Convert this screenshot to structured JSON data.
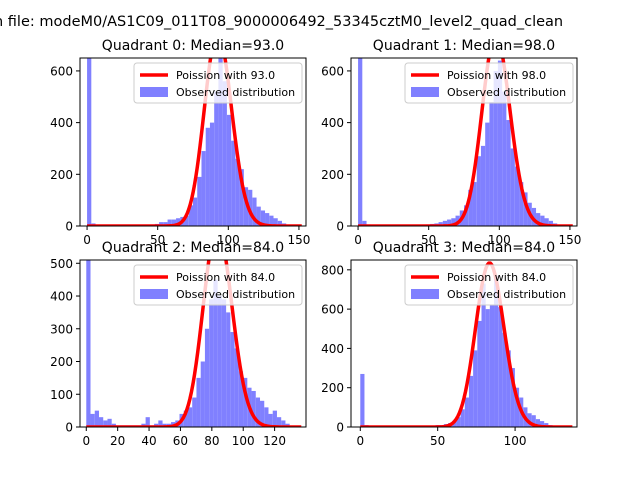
{
  "figure": {
    "suptitle": "n file: modeM0/AS1C09_011T08_9000006492_53345cztM0_level2_quad_clean",
    "colors": {
      "hist": "#8080ff",
      "fit": "#ff0000",
      "legend_border": "#cccccc"
    }
  },
  "chart_data": [
    {
      "type": "bar",
      "title": "Quadrant 0: Median=93.0",
      "legend": [
        "Poission with 93.0",
        "Observed distribution"
      ],
      "median": 93.0,
      "xlim": [
        -5,
        155
      ],
      "ylim": [
        0,
        650
      ],
      "xticks": [
        0,
        50,
        100,
        150
      ],
      "yticks": [
        0,
        200,
        400,
        600
      ],
      "bin_width": 3,
      "bins": [
        {
          "x": 0,
          "y": 650
        },
        {
          "x": 3,
          "y": 10
        },
        {
          "x": 6,
          "y": 5
        },
        {
          "x": 9,
          "y": 4
        },
        {
          "x": 12,
          "y": 3
        },
        {
          "x": 15,
          "y": 3
        },
        {
          "x": 18,
          "y": 3
        },
        {
          "x": 21,
          "y": 3
        },
        {
          "x": 24,
          "y": 4
        },
        {
          "x": 27,
          "y": 3
        },
        {
          "x": 30,
          "y": 4
        },
        {
          "x": 33,
          "y": 4
        },
        {
          "x": 36,
          "y": 5
        },
        {
          "x": 39,
          "y": 5
        },
        {
          "x": 42,
          "y": 5
        },
        {
          "x": 45,
          "y": 6
        },
        {
          "x": 48,
          "y": 8
        },
        {
          "x": 51,
          "y": 15
        },
        {
          "x": 54,
          "y": 15
        },
        {
          "x": 57,
          "y": 25
        },
        {
          "x": 60,
          "y": 25
        },
        {
          "x": 63,
          "y": 30
        },
        {
          "x": 66,
          "y": 35
        },
        {
          "x": 69,
          "y": 40
        },
        {
          "x": 72,
          "y": 80
        },
        {
          "x": 75,
          "y": 110
        },
        {
          "x": 78,
          "y": 190
        },
        {
          "x": 81,
          "y": 290
        },
        {
          "x": 84,
          "y": 380
        },
        {
          "x": 87,
          "y": 400
        },
        {
          "x": 90,
          "y": 520
        },
        {
          "x": 93,
          "y": 650
        },
        {
          "x": 96,
          "y": 560
        },
        {
          "x": 99,
          "y": 430
        },
        {
          "x": 102,
          "y": 330
        },
        {
          "x": 105,
          "y": 260
        },
        {
          "x": 108,
          "y": 220
        },
        {
          "x": 111,
          "y": 150
        },
        {
          "x": 114,
          "y": 140
        },
        {
          "x": 117,
          "y": 110
        },
        {
          "x": 120,
          "y": 75
        },
        {
          "x": 123,
          "y": 60
        },
        {
          "x": 126,
          "y": 50
        },
        {
          "x": 129,
          "y": 40
        },
        {
          "x": 132,
          "y": 30
        },
        {
          "x": 135,
          "y": 20
        },
        {
          "x": 138,
          "y": 10
        },
        {
          "x": 141,
          "y": 5
        }
      ]
    },
    {
      "type": "bar",
      "title": "Quadrant 1: Median=98.0",
      "legend": [
        "Poission with 98.0",
        "Observed distribution"
      ],
      "median": 98.0,
      "xlim": [
        -5,
        155
      ],
      "ylim": [
        0,
        650
      ],
      "xticks": [
        0,
        50,
        100,
        150
      ],
      "yticks": [
        0,
        200,
        400,
        600
      ],
      "bin_width": 3,
      "bins": [
        {
          "x": 0,
          "y": 650
        },
        {
          "x": 3,
          "y": 20
        },
        {
          "x": 6,
          "y": 6
        },
        {
          "x": 9,
          "y": 4
        },
        {
          "x": 12,
          "y": 3
        },
        {
          "x": 15,
          "y": 3
        },
        {
          "x": 18,
          "y": 3
        },
        {
          "x": 21,
          "y": 3
        },
        {
          "x": 24,
          "y": 3
        },
        {
          "x": 27,
          "y": 4
        },
        {
          "x": 30,
          "y": 4
        },
        {
          "x": 33,
          "y": 4
        },
        {
          "x": 36,
          "y": 4
        },
        {
          "x": 39,
          "y": 5
        },
        {
          "x": 42,
          "y": 5
        },
        {
          "x": 45,
          "y": 5
        },
        {
          "x": 48,
          "y": 6
        },
        {
          "x": 51,
          "y": 8
        },
        {
          "x": 54,
          "y": 10
        },
        {
          "x": 57,
          "y": 15
        },
        {
          "x": 60,
          "y": 20
        },
        {
          "x": 63,
          "y": 25
        },
        {
          "x": 66,
          "y": 30
        },
        {
          "x": 69,
          "y": 40
        },
        {
          "x": 72,
          "y": 60
        },
        {
          "x": 75,
          "y": 80
        },
        {
          "x": 78,
          "y": 140
        },
        {
          "x": 81,
          "y": 170
        },
        {
          "x": 84,
          "y": 270
        },
        {
          "x": 87,
          "y": 310
        },
        {
          "x": 90,
          "y": 400
        },
        {
          "x": 93,
          "y": 480
        },
        {
          "x": 96,
          "y": 600
        },
        {
          "x": 99,
          "y": 640
        },
        {
          "x": 102,
          "y": 520
        },
        {
          "x": 105,
          "y": 410
        },
        {
          "x": 108,
          "y": 300
        },
        {
          "x": 111,
          "y": 230
        },
        {
          "x": 114,
          "y": 170
        },
        {
          "x": 117,
          "y": 130
        },
        {
          "x": 120,
          "y": 90
        },
        {
          "x": 123,
          "y": 70
        },
        {
          "x": 126,
          "y": 50
        },
        {
          "x": 129,
          "y": 40
        },
        {
          "x": 132,
          "y": 30
        },
        {
          "x": 135,
          "y": 20
        },
        {
          "x": 138,
          "y": 10
        }
      ]
    },
    {
      "type": "bar",
      "title": "Quadrant 2: Median=84.0",
      "legend": [
        "Poission with 84.0",
        "Observed distribution"
      ],
      "median": 84.0,
      "xlim": [
        -4,
        140
      ],
      "ylim": [
        0,
        510
      ],
      "xticks": [
        0,
        20,
        40,
        60,
        80,
        100,
        120
      ],
      "yticks": [
        0,
        100,
        200,
        300,
        400,
        500
      ],
      "bin_width": 2.7,
      "bins": [
        {
          "x": 0,
          "y": 510
        },
        {
          "x": 2.7,
          "y": 40
        },
        {
          "x": 5.4,
          "y": 50
        },
        {
          "x": 8.1,
          "y": 30
        },
        {
          "x": 10.8,
          "y": 20
        },
        {
          "x": 13.5,
          "y": 25
        },
        {
          "x": 16.2,
          "y": 10
        },
        {
          "x": 18.9,
          "y": 5
        },
        {
          "x": 21.6,
          "y": 5
        },
        {
          "x": 24.3,
          "y": 5
        },
        {
          "x": 27,
          "y": 5
        },
        {
          "x": 29.7,
          "y": 5
        },
        {
          "x": 32.4,
          "y": 5
        },
        {
          "x": 35.1,
          "y": 10
        },
        {
          "x": 37.8,
          "y": 30
        },
        {
          "x": 40.5,
          "y": 5
        },
        {
          "x": 43.2,
          "y": 10
        },
        {
          "x": 45.9,
          "y": 20
        },
        {
          "x": 48.6,
          "y": 10
        },
        {
          "x": 51.3,
          "y": 10
        },
        {
          "x": 54,
          "y": 15
        },
        {
          "x": 56.7,
          "y": 20
        },
        {
          "x": 59.4,
          "y": 40
        },
        {
          "x": 62.1,
          "y": 50
        },
        {
          "x": 64.8,
          "y": 60
        },
        {
          "x": 67.5,
          "y": 90
        },
        {
          "x": 70.2,
          "y": 150
        },
        {
          "x": 72.9,
          "y": 200
        },
        {
          "x": 75.6,
          "y": 300
        },
        {
          "x": 78.3,
          "y": 390
        },
        {
          "x": 81,
          "y": 450
        },
        {
          "x": 83.7,
          "y": 400
        },
        {
          "x": 86.4,
          "y": 390
        },
        {
          "x": 89.1,
          "y": 350
        },
        {
          "x": 91.8,
          "y": 290
        },
        {
          "x": 94.5,
          "y": 240
        },
        {
          "x": 97.2,
          "y": 170
        },
        {
          "x": 99.9,
          "y": 150
        },
        {
          "x": 102.6,
          "y": 120
        },
        {
          "x": 105.3,
          "y": 110
        },
        {
          "x": 108,
          "y": 90
        },
        {
          "x": 110.7,
          "y": 80
        },
        {
          "x": 113.4,
          "y": 60
        },
        {
          "x": 116.1,
          "y": 40
        },
        {
          "x": 118.8,
          "y": 50
        },
        {
          "x": 121.5,
          "y": 30
        },
        {
          "x": 124.2,
          "y": 20
        },
        {
          "x": 126.9,
          "y": 10
        }
      ]
    },
    {
      "type": "bar",
      "title": "Quadrant 3: Median=84.0",
      "legend": [
        "Poission with 84.0",
        "Observed distribution"
      ],
      "median": 84.0,
      "xlim": [
        -6,
        140
      ],
      "ylim": [
        0,
        850
      ],
      "xticks": [
        0,
        50,
        100
      ],
      "yticks": [
        0,
        200,
        400,
        600,
        800
      ],
      "bin_width": 2.7,
      "bins": [
        {
          "x": 0,
          "y": 270
        },
        {
          "x": 2.7,
          "y": 10
        },
        {
          "x": 5.4,
          "y": 5
        },
        {
          "x": 8.1,
          "y": 5
        },
        {
          "x": 10.8,
          "y": 5
        },
        {
          "x": 13.5,
          "y": 5
        },
        {
          "x": 16.2,
          "y": 5
        },
        {
          "x": 18.9,
          "y": 5
        },
        {
          "x": 21.6,
          "y": 5
        },
        {
          "x": 24.3,
          "y": 5
        },
        {
          "x": 27,
          "y": 5
        },
        {
          "x": 29.7,
          "y": 5
        },
        {
          "x": 32.4,
          "y": 5
        },
        {
          "x": 35.1,
          "y": 5
        },
        {
          "x": 37.8,
          "y": 5
        },
        {
          "x": 40.5,
          "y": 5
        },
        {
          "x": 43.2,
          "y": 5
        },
        {
          "x": 45.9,
          "y": 5
        },
        {
          "x": 48.6,
          "y": 10
        },
        {
          "x": 51.3,
          "y": 10
        },
        {
          "x": 54,
          "y": 15
        },
        {
          "x": 56.7,
          "y": 20
        },
        {
          "x": 59.4,
          "y": 30
        },
        {
          "x": 62.1,
          "y": 50
        },
        {
          "x": 64.8,
          "y": 90
        },
        {
          "x": 67.5,
          "y": 150
        },
        {
          "x": 70.2,
          "y": 260
        },
        {
          "x": 72.9,
          "y": 390
        },
        {
          "x": 75.6,
          "y": 540
        },
        {
          "x": 78.3,
          "y": 730
        },
        {
          "x": 81,
          "y": 600
        },
        {
          "x": 83.7,
          "y": 620
        },
        {
          "x": 86.4,
          "y": 770
        },
        {
          "x": 89.1,
          "y": 610
        },
        {
          "x": 91.8,
          "y": 480
        },
        {
          "x": 94.5,
          "y": 390
        },
        {
          "x": 97.2,
          "y": 300
        },
        {
          "x": 99.9,
          "y": 200
        },
        {
          "x": 102.6,
          "y": 150
        },
        {
          "x": 105.3,
          "y": 100
        },
        {
          "x": 108,
          "y": 70
        },
        {
          "x": 110.7,
          "y": 60
        },
        {
          "x": 113.4,
          "y": 40
        },
        {
          "x": 116.1,
          "y": 30
        },
        {
          "x": 118.8,
          "y": 20
        },
        {
          "x": 121.5,
          "y": 10
        }
      ]
    }
  ]
}
